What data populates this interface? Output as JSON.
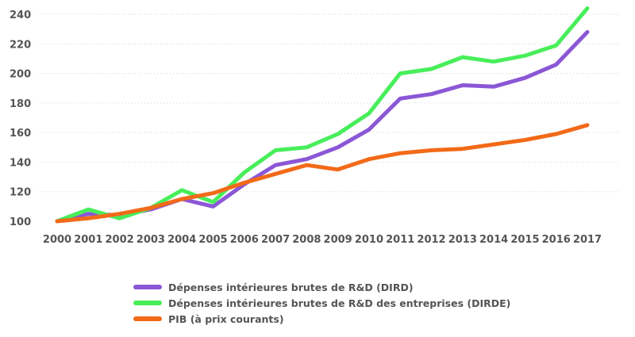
{
  "chart_data": {
    "type": "line",
    "title": "",
    "xlabel": "",
    "ylabel": "",
    "x": [
      "2000",
      "2001",
      "2002",
      "2003",
      "2004",
      "2005",
      "2006",
      "2007",
      "2008",
      "2009",
      "2010",
      "2011",
      "2012",
      "2013",
      "2014",
      "2015",
      "2016",
      "2017"
    ],
    "ylim": [
      100,
      240
    ],
    "yticks": [
      100,
      120,
      140,
      160,
      180,
      200,
      220,
      240
    ],
    "grid": "horizontal",
    "legend_position": "bottom",
    "series": [
      {
        "name": "Dépenses intérieures brutes de R&D (DIRD)",
        "color": "#8B57D6",
        "values": [
          100,
          105,
          104,
          108,
          115,
          110,
          125,
          138,
          142,
          150,
          162,
          183,
          186,
          192,
          191,
          197,
          206,
          228
        ]
      },
      {
        "name": "Dépenses intérieures brutes de R&D des entreprises (DIRDE)",
        "color": "#48EE5A",
        "values": [
          100,
          108,
          102,
          109,
          121,
          113,
          133,
          148,
          150,
          159,
          173,
          200,
          203,
          211,
          208,
          212,
          219,
          244
        ]
      },
      {
        "name": "PIB (à prix courants)",
        "color": "#F26A18",
        "values": [
          100,
          102,
          105,
          109,
          115,
          119,
          126,
          132,
          138,
          135,
          142,
          146,
          148,
          149,
          152,
          155,
          159,
          165
        ]
      }
    ]
  }
}
